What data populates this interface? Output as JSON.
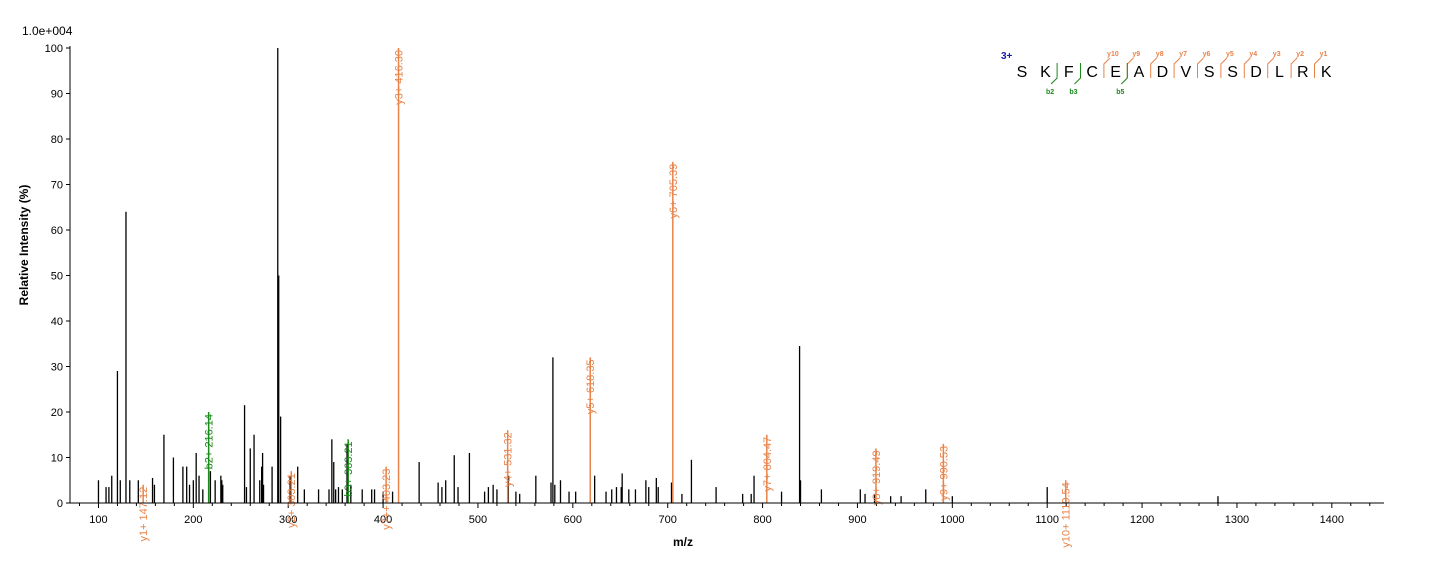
{
  "colors": {
    "y": "#e8834a",
    "b": "#1a8a1a",
    "other": "#000000",
    "charge": "#1a1aa6"
  },
  "chart_data": {
    "type": "bar",
    "title": "",
    "xlabel": "m/z",
    "ylabel": "Relative   Intensity (%)",
    "scale_label": "1.0e+004",
    "xlim": [
      70,
      1455
    ],
    "ylim": [
      0,
      100
    ],
    "xticks": [
      100,
      200,
      300,
      400,
      500,
      600,
      700,
      800,
      900,
      1000,
      1100,
      1200,
      1300,
      1400
    ],
    "yticks": [
      0,
      10,
      20,
      30,
      40,
      50,
      60,
      70,
      80,
      90,
      100
    ],
    "labeled_peaks": [
      {
        "mz": 147.12,
        "intensity": 4,
        "ion": "y",
        "label": "y1+ 147.12"
      },
      {
        "mz": 216.14,
        "intensity": 20,
        "ion": "b",
        "label": "b2+ 216.14"
      },
      {
        "mz": 303.21,
        "intensity": 7,
        "ion": "y",
        "label": "y2+ 303.21"
      },
      {
        "mz": 363.21,
        "intensity": 14,
        "ion": "b",
        "label": "b3+ 363.21"
      },
      {
        "mz": 403.23,
        "intensity": 8,
        "ion": "y",
        "label": "y7++ 403.23"
      },
      {
        "mz": 416.3,
        "intensity": 100,
        "ion": "y",
        "label": "y3+ 416.30"
      },
      {
        "mz": 531.32,
        "intensity": 16,
        "ion": "y",
        "label": "y4+ 531.32"
      },
      {
        "mz": 618.35,
        "intensity": 32,
        "ion": "y",
        "label": "y5+ 618.35"
      },
      {
        "mz": 705.39,
        "intensity": 75,
        "ion": "y",
        "label": "y6+ 705.39"
      },
      {
        "mz": 804.47,
        "intensity": 15,
        "ion": "y",
        "label": "y7+ 804.47"
      },
      {
        "mz": 919.49,
        "intensity": 12,
        "ion": "y",
        "label": "y8+ 919.49"
      },
      {
        "mz": 990.53,
        "intensity": 13,
        "ion": "y",
        "label": "y9+ 990.53"
      },
      {
        "mz": 1119.54,
        "intensity": 5,
        "ion": "y",
        "label": "y10+ 1119.54"
      }
    ],
    "unlabeled_peaks": [
      [
        100,
        5
      ],
      [
        108,
        3.5
      ],
      [
        111,
        3.5
      ],
      [
        114,
        6
      ],
      [
        120,
        29
      ],
      [
        123,
        5
      ],
      [
        129,
        64
      ],
      [
        133,
        5
      ],
      [
        142,
        5
      ],
      [
        157,
        5.5
      ],
      [
        159,
        4
      ],
      [
        169,
        15
      ],
      [
        179,
        10
      ],
      [
        189,
        8
      ],
      [
        193,
        8
      ],
      [
        196,
        4
      ],
      [
        200,
        5
      ],
      [
        203,
        11
      ],
      [
        206,
        6
      ],
      [
        210,
        3
      ],
      [
        218,
        7
      ],
      [
        223,
        5
      ],
      [
        229,
        6
      ],
      [
        230,
        5
      ],
      [
        231,
        4
      ],
      [
        254,
        21.5
      ],
      [
        256,
        3.5
      ],
      [
        260,
        12
      ],
      [
        264,
        15
      ],
      [
        270,
        5
      ],
      [
        272,
        8
      ],
      [
        273,
        11
      ],
      [
        274,
        4
      ],
      [
        283,
        8
      ],
      [
        289,
        100
      ],
      [
        290,
        50
      ],
      [
        292,
        19
      ],
      [
        302,
        6
      ],
      [
        310,
        8
      ],
      [
        317,
        3
      ],
      [
        332,
        3
      ],
      [
        343,
        3
      ],
      [
        346,
        14
      ],
      [
        348,
        9
      ],
      [
        350,
        3
      ],
      [
        353,
        3.5
      ],
      [
        357,
        3
      ],
      [
        362,
        13
      ],
      [
        366,
        4
      ],
      [
        378,
        3
      ],
      [
        388,
        3
      ],
      [
        391,
        3
      ],
      [
        400,
        2.5
      ],
      [
        410,
        2.5
      ],
      [
        438,
        9
      ],
      [
        458,
        4.5
      ],
      [
        462,
        3.5
      ],
      [
        466,
        5
      ],
      [
        475,
        10.5
      ],
      [
        479,
        3.5
      ],
      [
        491,
        11
      ],
      [
        507,
        2.5
      ],
      [
        511,
        3.5
      ],
      [
        516,
        4
      ],
      [
        520,
        3
      ],
      [
        532,
        6
      ],
      [
        540,
        2.5
      ],
      [
        544,
        2
      ],
      [
        561,
        6
      ],
      [
        577,
        4.5
      ],
      [
        579,
        32
      ],
      [
        581,
        4
      ],
      [
        587,
        5
      ],
      [
        596,
        2.5
      ],
      [
        603,
        2.5
      ],
      [
        623,
        6
      ],
      [
        635,
        2.5
      ],
      [
        641,
        3
      ],
      [
        646,
        3.5
      ],
      [
        651,
        3.5
      ],
      [
        652,
        6.5
      ],
      [
        659,
        3
      ],
      [
        666,
        3
      ],
      [
        677,
        5
      ],
      [
        680,
        3.5
      ],
      [
        688,
        5.5
      ],
      [
        690,
        3.5
      ],
      [
        704,
        4.5
      ],
      [
        715,
        2
      ],
      [
        725,
        9.5
      ],
      [
        751,
        3.5
      ],
      [
        779,
        2
      ],
      [
        788,
        2
      ],
      [
        791,
        6
      ],
      [
        820,
        2.5
      ],
      [
        839,
        34.5
      ],
      [
        840,
        5
      ],
      [
        862,
        3
      ],
      [
        903,
        3
      ],
      [
        908,
        2
      ],
      [
        918,
        2
      ],
      [
        935,
        1.5
      ],
      [
        946,
        1.5
      ],
      [
        972,
        3
      ],
      [
        1000,
        1.5
      ],
      [
        1100,
        3.5
      ],
      [
        1280,
        1.5
      ]
    ],
    "sequence": {
      "charge": "3+",
      "residues": [
        "S",
        "K",
        "F",
        "C",
        "E",
        "A",
        "D",
        "V",
        "S",
        "S",
        "D",
        "L",
        "R",
        "K"
      ],
      "y_ions": [
        "y10",
        "y9",
        "y8",
        "y7",
        "y6",
        "y5",
        "y4",
        "y3",
        "y2",
        "y1"
      ],
      "b_ions": [
        "b2",
        "b3",
        "b5"
      ]
    }
  }
}
